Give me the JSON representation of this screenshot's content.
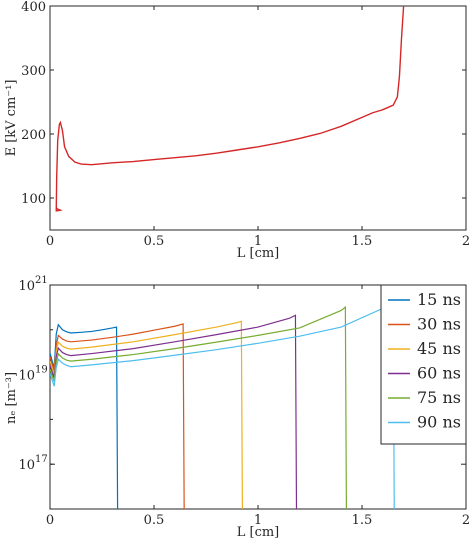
{
  "chart_data": [
    {
      "type": "line",
      "xlabel": "L [cm]",
      "ylabel": "E [kV cm⁻¹]",
      "xlim": [
        0,
        2
      ],
      "ylim": [
        50,
        400
      ],
      "xticks": [
        0,
        0.5,
        1,
        1.5,
        2
      ],
      "xtick_labels": [
        "0",
        "0.5",
        "1",
        "1.5",
        "2"
      ],
      "yticks": [
        100,
        200,
        300,
        400
      ],
      "ytick_labels": [
        "100",
        "200",
        "300",
        "400"
      ],
      "grid": false,
      "series": [
        {
          "color": "#d62728",
          "x": [
            0.03,
            0.035,
            0.05,
            0.035,
            0.03,
            0.032,
            0.037,
            0.045,
            0.05,
            0.06,
            0.07,
            0.09,
            0.12,
            0.15,
            0.2,
            0.3,
            0.4,
            0.5,
            0.6,
            0.7,
            0.8,
            0.9,
            1.0,
            1.1,
            1.2,
            1.3,
            1.4,
            1.5,
            1.55,
            1.6,
            1.65,
            1.67,
            1.68,
            1.69,
            1.7
          ],
          "y": [
            85,
            83,
            81,
            80,
            80,
            130,
            190,
            215,
            218,
            205,
            180,
            165,
            156,
            153,
            152,
            155,
            157,
            160,
            163,
            166,
            170,
            175,
            180,
            186,
            193,
            201,
            212,
            226,
            233,
            238,
            245,
            258,
            290,
            350,
            400
          ]
        }
      ]
    },
    {
      "type": "line",
      "xlabel": "L [cm]",
      "ylabel": "nₑ [m⁻³]",
      "xlim": [
        0,
        2
      ],
      "yscale": "log",
      "ylim": [
        1e+16,
        1e+21
      ],
      "xticks": [
        0,
        0.5,
        1,
        1.5,
        2
      ],
      "xtick_labels": [
        "0",
        "0.5",
        "1",
        "1.5",
        "2"
      ],
      "ytick_values": [
        1e+17,
        1e+19,
        1e+21
      ],
      "ytick_bases": [
        "10",
        "10",
        "10"
      ],
      "ytick_exponents": [
        "17",
        "19",
        "21"
      ],
      "grid": false,
      "legend_position": "right-outside",
      "series": [
        {
          "name": "15 ns",
          "color": "#0072bd",
          "x": [
            0.0,
            0.02,
            0.03,
            0.04,
            0.06,
            0.08,
            0.1,
            0.15,
            0.2,
            0.25,
            0.3,
            0.32,
            0.325,
            0.33
          ],
          "y": [
            3e+19,
            1.4e+19,
            8e+19,
            1.3e+20,
            1e+20,
            9e+19,
            8.5e+19,
            8.8e+19,
            9.2e+19,
            1e+20,
            1.1e+20,
            1.15e+20,
            1e+16,
            1e+16
          ]
        },
        {
          "name": "30 ns",
          "color": "#d95319",
          "x": [
            0.0,
            0.02,
            0.03,
            0.04,
            0.06,
            0.08,
            0.1,
            0.2,
            0.3,
            0.4,
            0.5,
            0.6,
            0.64,
            0.645,
            0.65
          ],
          "y": [
            2.5e+19,
            1.2e+19,
            4.5e+19,
            7.5e+19,
            6.2e+19,
            5.6e+19,
            5.4e+19,
            5.9e+19,
            6.8e+19,
            8e+19,
            9.8e+19,
            1.2e+20,
            1.35e+20,
            1e+16,
            1e+16
          ]
        },
        {
          "name": "45 ns",
          "color": "#edb120",
          "x": [
            0.0,
            0.02,
            0.03,
            0.04,
            0.06,
            0.08,
            0.1,
            0.2,
            0.4,
            0.6,
            0.8,
            0.9,
            0.92,
            0.925
          ],
          "y": [
            2e+19,
            1e+19,
            3.3e+19,
            5.3e+19,
            4.3e+19,
            3.9e+19,
            3.7e+19,
            4.1e+19,
            5.4e+19,
            7.8e+19,
            1.15e+20,
            1.45e+20,
            1.55e+20,
            1e+16
          ]
        },
        {
          "name": "60 ns",
          "color": "#7e2f8e",
          "x": [
            0.0,
            0.02,
            0.03,
            0.04,
            0.06,
            0.08,
            0.1,
            0.2,
            0.4,
            0.6,
            0.8,
            1.0,
            1.15,
            1.18,
            1.185
          ],
          "y": [
            1.6e+19,
            8.5e+18,
            2.5e+19,
            3.9e+19,
            3.1e+19,
            2.8e+19,
            2.65e+19,
            2.95e+19,
            3.8e+19,
            5.4e+19,
            7.8e+19,
            1.15e+20,
            1.8e+20,
            2.1e+20,
            1e+16
          ]
        },
        {
          "name": "75 ns",
          "color": "#77ac30",
          "x": [
            0.0,
            0.02,
            0.03,
            0.04,
            0.06,
            0.08,
            0.1,
            0.2,
            0.4,
            0.6,
            0.8,
            1.0,
            1.2,
            1.4,
            1.42,
            1.425
          ],
          "y": [
            1.3e+19,
            7e+18,
            1.9e+19,
            2.9e+19,
            2.35e+19,
            2.1e+19,
            2e+19,
            2.2e+19,
            2.8e+19,
            3.8e+19,
            5.3e+19,
            7.5e+19,
            1.1e+20,
            2.7e+20,
            3.2e+20,
            1e+16
          ]
        },
        {
          "name": "90 ns",
          "color": "#4dbeee",
          "x": [
            0.0,
            0.02,
            0.03,
            0.04,
            0.06,
            0.08,
            0.1,
            0.2,
            0.4,
            0.6,
            0.8,
            1.0,
            1.2,
            1.4,
            1.6,
            1.65,
            1.655
          ],
          "y": [
            1.05e+19,
            5.5e+18,
            1.45e+19,
            2.2e+19,
            1.8e+19,
            1.6e+19,
            1.5e+19,
            1.65e+19,
            2.05e+19,
            2.7e+19,
            3.6e+19,
            5e+19,
            7.2e+19,
            1.15e+20,
            3e+20,
            5.2e+20,
            1e+16
          ]
        }
      ]
    }
  ]
}
